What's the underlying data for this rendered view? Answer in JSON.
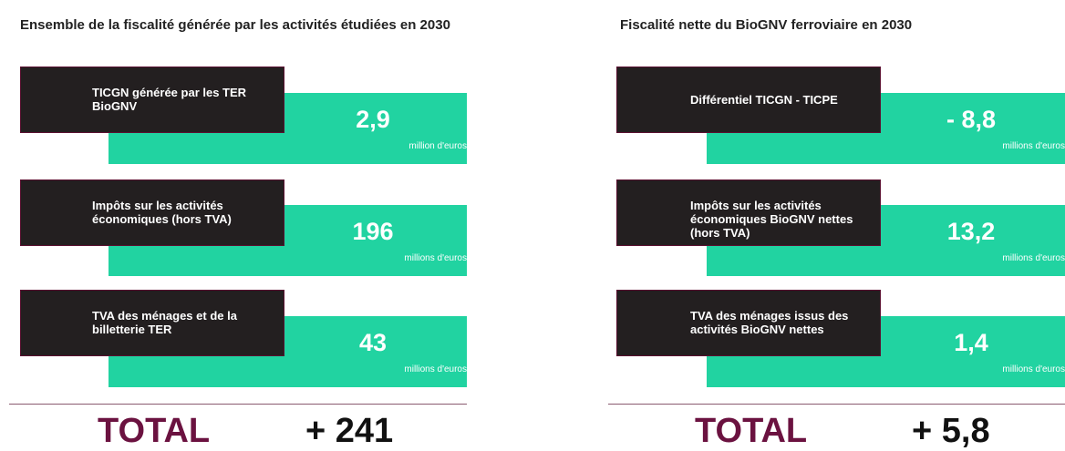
{
  "panels": [
    {
      "title": "Ensemble de la fiscalité générée par les activités étudiées en 2030",
      "items": [
        {
          "label": "TICGN générée par les TER BioGNV",
          "value": "2,9",
          "unit": "million d'euros"
        },
        {
          "label": "Impôts sur les activités économiques (hors TVA)",
          "value": "196",
          "unit": "millions d'euros"
        },
        {
          "label": "TVA des ménages et de la billetterie TER",
          "value": "43",
          "unit": "millions d'euros"
        }
      ],
      "total_label": "TOTAL",
      "total_value": "+ 241"
    },
    {
      "title": "Fiscalité nette du BioGNV ferroviaire en 2030",
      "items": [
        {
          "label": "Différentiel TICGN - TICPE",
          "value": "- 8,8",
          "unit": "millions d'euros"
        },
        {
          "label": "Impôts sur les activités économiques BioGNV nettes (hors TVA)",
          "value": "13,2",
          "unit": "millions d'euros"
        },
        {
          "label": "TVA des ménages issus des activités BioGNV nettes",
          "value": "1,4",
          "unit": "millions d'euros"
        }
      ],
      "total_label": "TOTAL",
      "total_value": "+ 5,8"
    }
  ]
}
